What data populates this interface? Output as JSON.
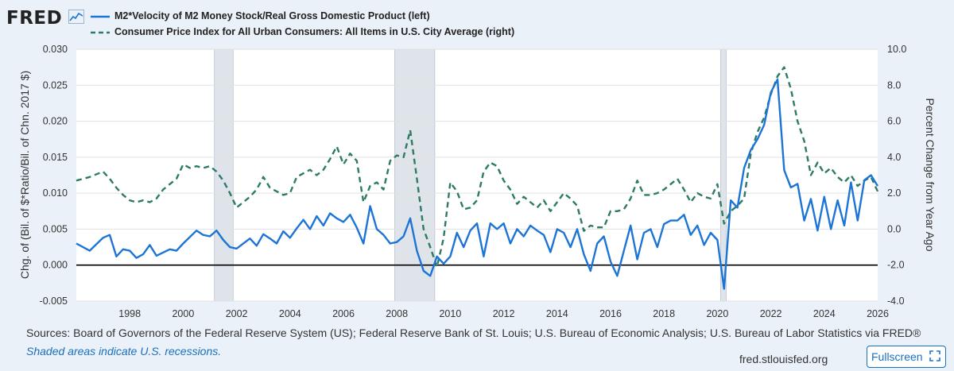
{
  "header": {
    "logo_text": "FRED",
    "logo_icon": "line-chart-icon",
    "legend": [
      {
        "label": "M2*Velocity of M2 Money Stock/Real Gross Domestic Product (left)",
        "color": "#1c74d6",
        "style": "solid"
      },
      {
        "label": "Consumer Price Index for All Urban Consumers: All Items in U.S. City Average (right)",
        "color": "#2d7a66",
        "style": "dashed"
      }
    ]
  },
  "footer": {
    "sources": "Sources: Board of Governors of the Federal Reserve System (US); Federal Reserve Bank of St. Louis; U.S. Bureau of Economic Analysis; U.S. Bureau of Labor Statistics via FRED®",
    "note": "Shaded areas indicate U.S. recessions.",
    "site": "fred.stlouisfed.org",
    "fullscreen_label": "Fullscreen",
    "fullscreen_icon": "expand-icon"
  },
  "chart_data": {
    "type": "line",
    "ylabel_left": "Chg. of (Bil. of $*Ratio/Bil. of Chn. 2017 $)",
    "ylabel_right": "Percent Change from Year Ago",
    "xlim": [
      1996.0,
      2026.0
    ],
    "ylim_left": [
      -0.005,
      0.03
    ],
    "ylim_right": [
      -4.0,
      10.0
    ],
    "x_ticks": [
      1998,
      2000,
      2002,
      2004,
      2006,
      2008,
      2010,
      2012,
      2014,
      2016,
      2018,
      2020,
      2022,
      2024,
      2026
    ],
    "x_tick_labels": [
      "1998",
      "2000",
      "2002",
      "2004",
      "2006",
      "2008",
      "2010",
      "2012",
      "2014",
      "2016",
      "2018",
      "2020",
      "2022",
      "2024",
      "2026"
    ],
    "y_left_ticks": [
      -0.005,
      0.0,
      0.005,
      0.01,
      0.015,
      0.02,
      0.025,
      0.03
    ],
    "y_left_tick_labels": [
      "-0.005",
      "0.000",
      "0.005",
      "0.010",
      "0.015",
      "0.020",
      "0.025",
      "0.030"
    ],
    "y_right_ticks": [
      -4,
      -2,
      0,
      2,
      4,
      6,
      8,
      10
    ],
    "y_right_tick_labels": [
      "-4.0",
      "-2.0",
      "0.0",
      "2.0",
      "4.0",
      "6.0",
      "8.0",
      "10.0"
    ],
    "recessions": [
      [
        2001.17,
        2001.87
      ],
      [
        2007.92,
        2009.42
      ],
      [
        2020.12,
        2020.33
      ]
    ],
    "grid": true,
    "series": [
      {
        "name": "M2*Velocity of M2 Money Stock/Real Gross Domestic Product (left)",
        "axis": "left",
        "color": "#1c74d6",
        "dash": "solid",
        "x": [
          1996.0,
          1996.5,
          1997.0,
          1997.25,
          1997.5,
          1997.75,
          1998.0,
          1998.25,
          1998.5,
          1998.75,
          1999.0,
          1999.5,
          1999.75,
          2000.0,
          2000.5,
          2000.75,
          2001.0,
          2001.25,
          2001.5,
          2001.75,
          2002.0,
          2002.5,
          2002.75,
          2003.0,
          2003.25,
          2003.5,
          2003.75,
          2004.0,
          2004.25,
          2004.5,
          2004.75,
          2005.0,
          2005.25,
          2005.5,
          2005.75,
          2006.0,
          2006.25,
          2006.5,
          2006.75,
          2007.0,
          2007.25,
          2007.5,
          2007.75,
          2008.0,
          2008.25,
          2008.5,
          2008.75,
          2009.0,
          2009.25,
          2009.5,
          2009.75,
          2010.0,
          2010.25,
          2010.5,
          2010.75,
          2011.0,
          2011.25,
          2011.5,
          2011.75,
          2012.0,
          2012.25,
          2012.5,
          2012.75,
          2013.0,
          2013.25,
          2013.5,
          2013.75,
          2014.0,
          2014.25,
          2014.5,
          2014.75,
          2015.0,
          2015.25,
          2015.5,
          2015.75,
          2016.0,
          2016.25,
          2016.5,
          2016.75,
          2017.0,
          2017.25,
          2017.5,
          2017.75,
          2018.0,
          2018.25,
          2018.5,
          2018.75,
          2019.0,
          2019.25,
          2019.5,
          2019.75,
          2020.0,
          2020.25,
          2020.5,
          2020.75,
          2021.0,
          2021.25,
          2021.5,
          2021.75,
          2022.0,
          2022.25,
          2022.5,
          2022.75,
          2023.0,
          2023.25,
          2023.5,
          2023.75,
          2024.0,
          2024.25,
          2024.5,
          2024.75,
          2025.0,
          2025.25,
          2025.5,
          2025.75,
          2026.0
        ],
        "y": [
          0.003,
          0.002,
          0.0038,
          0.0042,
          0.0012,
          0.0022,
          0.002,
          0.001,
          0.0015,
          0.0028,
          0.0013,
          0.0022,
          0.002,
          0.003,
          0.0048,
          0.0042,
          0.004,
          0.0048,
          0.0035,
          0.0025,
          0.0023,
          0.0037,
          0.0027,
          0.0043,
          0.0037,
          0.003,
          0.0047,
          0.0038,
          0.0051,
          0.0063,
          0.005,
          0.0068,
          0.0055,
          0.0072,
          0.0065,
          0.006,
          0.007,
          0.0052,
          0.003,
          0.0082,
          0.005,
          0.0042,
          0.003,
          0.0032,
          0.004,
          0.0065,
          0.002,
          -0.0008,
          -0.0015,
          0.0012,
          0.0002,
          0.0012,
          0.0045,
          0.0025,
          0.0048,
          0.0058,
          0.0012,
          0.0058,
          0.005,
          0.0058,
          0.003,
          0.005,
          0.004,
          0.0055,
          0.0048,
          0.0042,
          0.0018,
          0.005,
          0.0045,
          0.0025,
          0.005,
          0.0015,
          -0.0008,
          0.003,
          0.004,
          0.0005,
          -0.0015,
          0.002,
          0.0055,
          0.0008,
          0.0045,
          0.005,
          0.0025,
          0.0057,
          0.0062,
          0.0062,
          0.007,
          0.0042,
          0.0055,
          0.0028,
          0.0045,
          0.0035,
          -0.0033,
          0.009,
          0.008,
          0.0135,
          0.016,
          0.0175,
          0.0195,
          0.024,
          0.0258,
          0.0132,
          0.0108,
          0.0113,
          0.0062,
          0.0092,
          0.0048,
          0.0095,
          0.005,
          0.009,
          0.0055,
          0.0115,
          0.0062,
          0.0118,
          0.0125,
          0.011
        ]
      },
      {
        "name": "Consumer Price Index for All Urban Consumers: All Items in U.S. City Average (right)",
        "axis": "right",
        "color": "#2d7a66",
        "dash": "dashed",
        "x": [
          1996.0,
          1996.5,
          1997.0,
          1997.25,
          1997.5,
          1997.75,
          1998.0,
          1998.25,
          1998.5,
          1998.75,
          1999.0,
          1999.25,
          1999.5,
          1999.75,
          2000.0,
          2000.25,
          2000.5,
          2000.75,
          2001.0,
          2001.25,
          2001.5,
          2001.75,
          2002.0,
          2002.25,
          2002.5,
          2002.75,
          2003.0,
          2003.25,
          2003.5,
          2003.75,
          2004.0,
          2004.25,
          2004.5,
          2004.75,
          2005.0,
          2005.25,
          2005.5,
          2005.75,
          2006.0,
          2006.25,
          2006.5,
          2006.75,
          2007.0,
          2007.25,
          2007.5,
          2007.75,
          2008.0,
          2008.25,
          2008.5,
          2008.75,
          2009.0,
          2009.25,
          2009.5,
          2009.75,
          2010.0,
          2010.25,
          2010.5,
          2010.75,
          2011.0,
          2011.25,
          2011.5,
          2011.75,
          2012.0,
          2012.25,
          2012.5,
          2012.75,
          2013.0,
          2013.25,
          2013.5,
          2013.75,
          2014.0,
          2014.25,
          2014.5,
          2014.75,
          2015.0,
          2015.25,
          2015.5,
          2015.75,
          2016.0,
          2016.25,
          2016.5,
          2016.75,
          2017.0,
          2017.25,
          2017.5,
          2017.75,
          2018.0,
          2018.25,
          2018.5,
          2018.75,
          2019.0,
          2019.25,
          2019.5,
          2019.75,
          2020.0,
          2020.25,
          2020.5,
          2020.75,
          2021.0,
          2021.25,
          2021.5,
          2021.75,
          2022.0,
          2022.25,
          2022.5,
          2022.75,
          2023.0,
          2023.25,
          2023.5,
          2023.75,
          2024.0,
          2024.25,
          2024.5,
          2024.75,
          2025.0,
          2025.25,
          2025.5,
          2025.75,
          2026.0
        ],
        "y": [
          2.7,
          2.9,
          3.2,
          2.8,
          2.3,
          1.9,
          1.6,
          1.5,
          1.6,
          1.5,
          1.7,
          2.2,
          2.5,
          2.8,
          3.6,
          3.4,
          3.5,
          3.4,
          3.5,
          3.2,
          2.7,
          2.0,
          1.2,
          1.5,
          1.8,
          2.2,
          2.9,
          2.3,
          2.1,
          1.9,
          2.0,
          2.9,
          3.1,
          3.3,
          3.0,
          3.3,
          3.9,
          4.6,
          3.6,
          4.2,
          3.8,
          1.5,
          2.4,
          2.6,
          2.2,
          3.8,
          4.1,
          4.0,
          5.5,
          2.8,
          0.0,
          -1.0,
          -2.1,
          -0.5,
          2.6,
          2.1,
          1.1,
          1.2,
          1.6,
          3.2,
          3.7,
          3.5,
          2.7,
          2.2,
          1.4,
          1.8,
          1.5,
          1.2,
          1.6,
          1.0,
          1.5,
          2.0,
          1.7,
          1.3,
          -0.1,
          0.2,
          0.1,
          0.1,
          1.0,
          1.0,
          1.1,
          1.7,
          2.7,
          1.9,
          1.9,
          2.0,
          2.2,
          2.5,
          2.8,
          2.2,
          1.5,
          2.0,
          1.8,
          1.7,
          2.5,
          0.3,
          1.0,
          1.3,
          1.7,
          4.2,
          5.4,
          6.2,
          7.5,
          8.5,
          9.0,
          7.8,
          6.0,
          4.9,
          3.0,
          3.7,
          3.1,
          3.4,
          2.9,
          2.6,
          3.0,
          2.4,
          2.7,
          2.9,
          2.1
        ]
      }
    ]
  }
}
